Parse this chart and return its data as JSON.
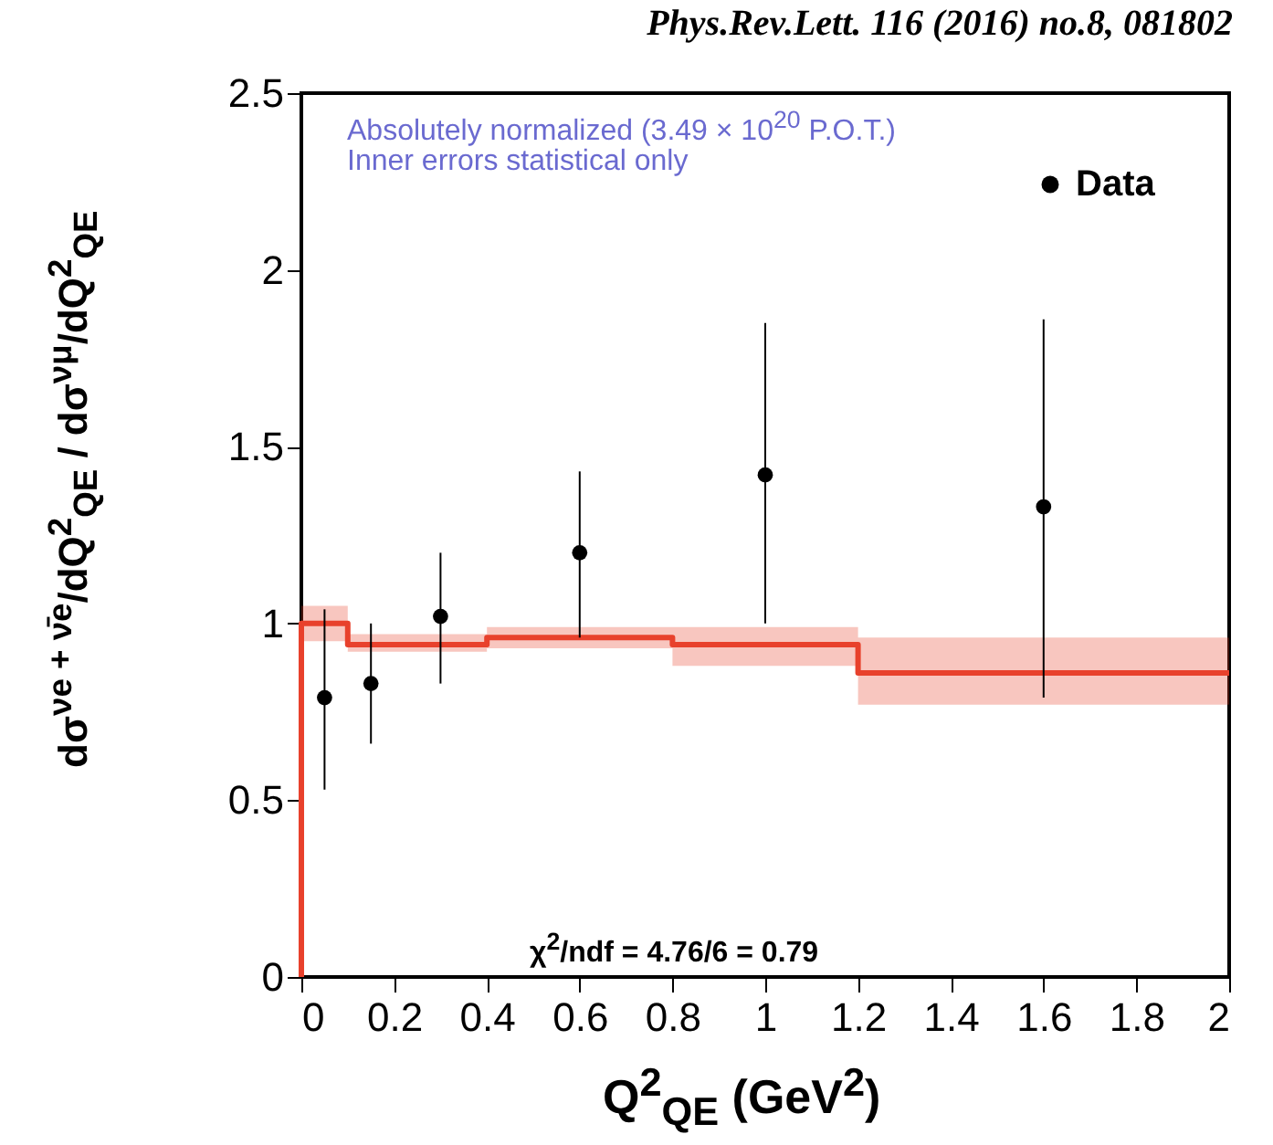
{
  "chart_data": {
    "type": "scatter",
    "title": "Phys.Rev.Lett. 116 (2016) no.8, 081802",
    "xlabel": "Q$^{2}$$_{QE}$ (GeV$^{2}$)",
    "ylabel": "dσ$^{νe + ν̄e}$/dQ$^{2}$$_{QE}$ / dσ$^{νμ}$/dQ$^{2}$$_{QE}$",
    "annotations": [
      "Absolutely normalized (3.49 × 10$^{20}$ P.O.T.)",
      "Inner errors statistical only",
      "χ$^{2}$/ndf = 4.76/6 = 0.79"
    ],
    "xlim": [
      0,
      2
    ],
    "xticks": [
      0,
      0.2,
      0.4,
      0.6,
      0.8,
      1,
      1.2,
      1.4,
      1.6,
      1.8,
      2
    ],
    "ylim": [
      0,
      2.5
    ],
    "yticks": [
      0,
      0.5,
      1,
      1.5,
      2,
      2.5
    ],
    "grid": false,
    "legend": "top right",
    "series": [
      {
        "type": "step",
        "color": "#e8412c",
        "x": [
          0,
          0,
          0.1,
          0.4,
          0.8,
          1.2,
          2
        ],
        "values": [
          0,
          1.0,
          0.94,
          0.96,
          0.94,
          0.86,
          0.86
        ],
        "lower": [
          0,
          0.95,
          0.92,
          0.93,
          0.88,
          0.77,
          0.77
        ],
        "upper": [
          0,
          1.05,
          0.97,
          0.99,
          0.99,
          0.96,
          0.96
        ]
      },
      {
        "type": "scatter",
        "name": "Data",
        "color": "#000000",
        "marker": "circle",
        "x": [
          0.05,
          0.15,
          0.3,
          0.6,
          1.0,
          1.6
        ],
        "values": [
          0.79,
          0.83,
          1.02,
          1.2,
          1.42,
          1.33
        ],
        "errors": [
          [
            0.53,
            1.04
          ],
          [
            0.66,
            1.0
          ],
          [
            0.83,
            1.2
          ],
          [
            0.96,
            1.43
          ],
          [
            1.0,
            1.85
          ],
          [
            0.79,
            1.86
          ]
        ]
      }
    ]
  }
}
